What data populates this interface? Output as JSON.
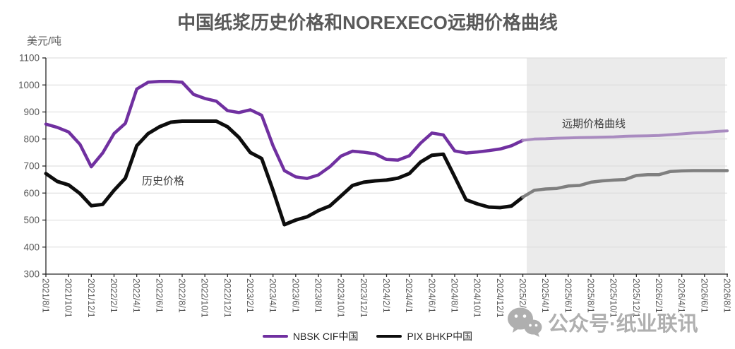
{
  "title": "中国纸浆历史价格和NOREXECO远期价格曲线",
  "y_axis_unit": "美元/吨",
  "annotations": {
    "historical": "历史价格",
    "forward": "远期价格曲线"
  },
  "legend": [
    {
      "label": "NBSK CIF中国",
      "color": "#7030A0"
    },
    {
      "label": "PIX BHKP中国",
      "color": "#0d0d0d"
    }
  ],
  "watermark": {
    "text": "公众号·纸业联讯",
    "icon": "wechat-icon"
  },
  "colors": {
    "title_text": "#595959",
    "axis_text": "#595959",
    "gridline": "#d9d9d9",
    "axis_line": "#262626",
    "nbsk_historical": "#7030A0",
    "pix_historical": "#0d0d0d",
    "nbsk_forward": "#a98bc0",
    "pix_forward": "#7f7f7f",
    "forward_region_fill": "#ebebeb",
    "watermark_text": "#afafaf"
  },
  "chart_data": {
    "type": "line",
    "title": "中国纸浆历史价格和NOREXECO远期价格曲线",
    "xlabel": "",
    "ylabel": "美元/吨",
    "ylim": [
      300,
      1100
    ],
    "y_ticks": [
      300,
      400,
      500,
      600,
      700,
      800,
      900,
      1000,
      1100
    ],
    "grid": true,
    "legend_position": "bottom",
    "x_tick_labels": [
      "2021/8/1",
      "2021/10/1",
      "2021/12/1",
      "2022/2/1",
      "2022/4/1",
      "2022/6/1",
      "2022/8/1",
      "2022/10/1",
      "2022/12/1",
      "2023/2/1",
      "2023/4/1",
      "2023/6/1",
      "2023/8/1",
      "2023/10/1",
      "2023/12/1",
      "2024/2/1",
      "2024/4/1",
      "2024/6/1",
      "2024/8/1",
      "2024/10/1",
      "2024/12/1",
      "2025/2/1",
      "2025/4/1",
      "2025/6/1",
      "2025/8/1",
      "2025/10/1",
      "2025/12/1",
      "2026/2/1",
      "2026/4/1",
      "2026/6/1",
      "2026/8/1"
    ],
    "forward_region": {
      "start": "2025/2/1",
      "end": "2026/8/1",
      "label": "远期价格曲线"
    },
    "series": [
      {
        "name": "NBSK CIF中国 (历史价格)",
        "color": "#7030A0",
        "width": 4.5,
        "months": [
          "2021/8/1",
          "2021/9/1",
          "2021/10/1",
          "2021/11/1",
          "2021/12/1",
          "2022/1/1",
          "2022/2/1",
          "2022/3/1",
          "2022/4/1",
          "2022/5/1",
          "2022/6/1",
          "2022/7/1",
          "2022/8/1",
          "2022/9/1",
          "2022/10/1",
          "2022/11/1",
          "2022/12/1",
          "2023/1/1",
          "2023/2/1",
          "2023/3/1",
          "2023/4/1",
          "2023/5/1",
          "2023/6/1",
          "2023/7/1",
          "2023/8/1",
          "2023/9/1",
          "2023/10/1",
          "2023/11/1",
          "2023/12/1",
          "2024/1/1",
          "2024/2/1",
          "2024/3/1",
          "2024/4/1",
          "2024/5/1",
          "2024/6/1",
          "2024/7/1",
          "2024/8/1",
          "2024/9/1",
          "2024/10/1",
          "2024/11/1",
          "2024/12/1",
          "2025/1/1",
          "2025/2/1"
        ],
        "values": [
          855,
          843,
          826,
          780,
          697,
          748,
          820,
          858,
          985,
          1010,
          1013,
          1013,
          1010,
          965,
          950,
          940,
          905,
          898,
          908,
          888,
          775,
          683,
          660,
          654,
          667,
          697,
          737,
          755,
          751,
          745,
          724,
          722,
          738,
          785,
          822,
          815,
          756,
          748,
          752,
          757,
          763,
          775,
          795
        ]
      },
      {
        "name": "PIX BHKP中国 (历史价格)",
        "color": "#0d0d0d",
        "width": 5,
        "months": [
          "2021/8/1",
          "2021/9/1",
          "2021/10/1",
          "2021/11/1",
          "2021/12/1",
          "2022/1/1",
          "2022/2/1",
          "2022/3/1",
          "2022/4/1",
          "2022/5/1",
          "2022/6/1",
          "2022/7/1",
          "2022/8/1",
          "2022/9/1",
          "2022/10/1",
          "2022/11/1",
          "2022/12/1",
          "2023/1/1",
          "2023/2/1",
          "2023/3/1",
          "2023/4/1",
          "2023/5/1",
          "2023/6/1",
          "2023/7/1",
          "2023/8/1",
          "2023/9/1",
          "2023/10/1",
          "2023/11/1",
          "2023/12/1",
          "2024/1/1",
          "2024/2/1",
          "2024/3/1",
          "2024/4/1",
          "2024/5/1",
          "2024/6/1",
          "2024/7/1",
          "2024/8/1",
          "2024/9/1",
          "2024/10/1",
          "2024/11/1",
          "2024/12/1",
          "2025/1/1",
          "2025/2/1"
        ],
        "values": [
          672,
          643,
          630,
          598,
          553,
          558,
          610,
          655,
          775,
          820,
          845,
          862,
          866,
          866,
          866,
          866,
          845,
          806,
          750,
          728,
          610,
          483,
          500,
          512,
          535,
          552,
          590,
          628,
          640,
          645,
          648,
          655,
          672,
          715,
          740,
          744,
          660,
          575,
          560,
          548,
          546,
          552,
          585
        ]
      },
      {
        "name": "NBSK CIF中国 (远期价格曲线)",
        "color": "#a98bc0",
        "width": 4,
        "months": [
          "2025/2/1",
          "2025/3/1",
          "2025/4/1",
          "2025/5/1",
          "2025/6/1",
          "2025/7/1",
          "2025/8/1",
          "2025/9/1",
          "2025/10/1",
          "2025/11/1",
          "2025/12/1",
          "2026/1/1",
          "2026/2/1",
          "2026/3/1",
          "2026/4/1",
          "2026/5/1",
          "2026/6/1",
          "2026/7/1",
          "2026/8/1"
        ],
        "values": [
          795,
          800,
          801,
          803,
          804,
          805,
          806,
          807,
          808,
          810,
          811,
          812,
          813,
          816,
          819,
          822,
          824,
          828,
          830
        ]
      },
      {
        "name": "PIX BHKP中国 (远期价格曲线)",
        "color": "#7f7f7f",
        "width": 4.5,
        "months": [
          "2025/2/1",
          "2025/3/1",
          "2025/4/1",
          "2025/5/1",
          "2025/6/1",
          "2025/7/1",
          "2025/8/1",
          "2025/9/1",
          "2025/10/1",
          "2025/11/1",
          "2025/12/1",
          "2026/1/1",
          "2026/2/1",
          "2026/3/1",
          "2026/4/1",
          "2026/5/1",
          "2026/6/1",
          "2026/7/1",
          "2026/8/1"
        ],
        "values": [
          585,
          610,
          615,
          617,
          626,
          628,
          640,
          645,
          648,
          650,
          665,
          668,
          668,
          680,
          682,
          683,
          683,
          683,
          683
        ]
      }
    ]
  }
}
